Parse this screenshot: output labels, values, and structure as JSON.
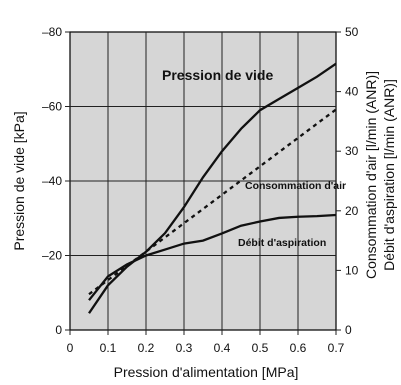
{
  "chart_data": {
    "type": "line",
    "title": "",
    "xlabel": "Pression d'alimentation [MPa]",
    "ylabel_left": "Pression de vide [kPa]",
    "ylabel_right_1": "Consommation d'air [l/min (ANR)]",
    "ylabel_right_2": "Débit d'aspiration [l/min (ANR)]",
    "x_ticks": [
      "0",
      "0.1",
      "0.2",
      "0.3",
      "0.4",
      "0.5",
      "0.6",
      "0.7"
    ],
    "y_left_ticks": [
      "0",
      "–20",
      "–40",
      "–60",
      "–80"
    ],
    "y_right_ticks": [
      "0",
      "10",
      "20",
      "30",
      "40",
      "50"
    ],
    "xlim": [
      0,
      0.7
    ],
    "ylim_left": [
      0,
      -80
    ],
    "ylim_right": [
      0,
      50
    ],
    "grid": true,
    "series": [
      {
        "name": "Pression de vide",
        "axis": "left",
        "style": "solid",
        "x": [
          0.05,
          0.1,
          0.15,
          0.2,
          0.25,
          0.3,
          0.35,
          0.4,
          0.45,
          0.5,
          0.55,
          0.6,
          0.65,
          0.7
        ],
        "y": [
          -4.5,
          -12,
          -17,
          -21,
          -26,
          -33,
          -41,
          -48,
          -54,
          -59,
          -62,
          -65,
          -68,
          -71.5
        ]
      },
      {
        "name": "Consommation d'air",
        "axis": "right",
        "style": "dashed",
        "x": [
          0.05,
          0.7
        ],
        "y": [
          6,
          37
        ]
      },
      {
        "name": "Débit d'aspiration",
        "axis": "right",
        "style": "solid",
        "x": [
          0.05,
          0.1,
          0.15,
          0.2,
          0.25,
          0.3,
          0.35,
          0.4,
          0.45,
          0.5,
          0.55,
          0.6,
          0.65,
          0.7
        ],
        "y": [
          5,
          9,
          11,
          12.5,
          13.5,
          14.5,
          15,
          16.2,
          17.5,
          18.2,
          18.8,
          19,
          19.1,
          19.3
        ]
      }
    ],
    "labels": {
      "vacuum": "Pression de vide",
      "air": "Consommation d'air",
      "suction": "Débit d'aspiration"
    },
    "colors": {
      "background": "#ffffff",
      "plot_background": "#d6d6d6",
      "grid": "#222222",
      "line": "#111111",
      "text": "#111111"
    }
  }
}
